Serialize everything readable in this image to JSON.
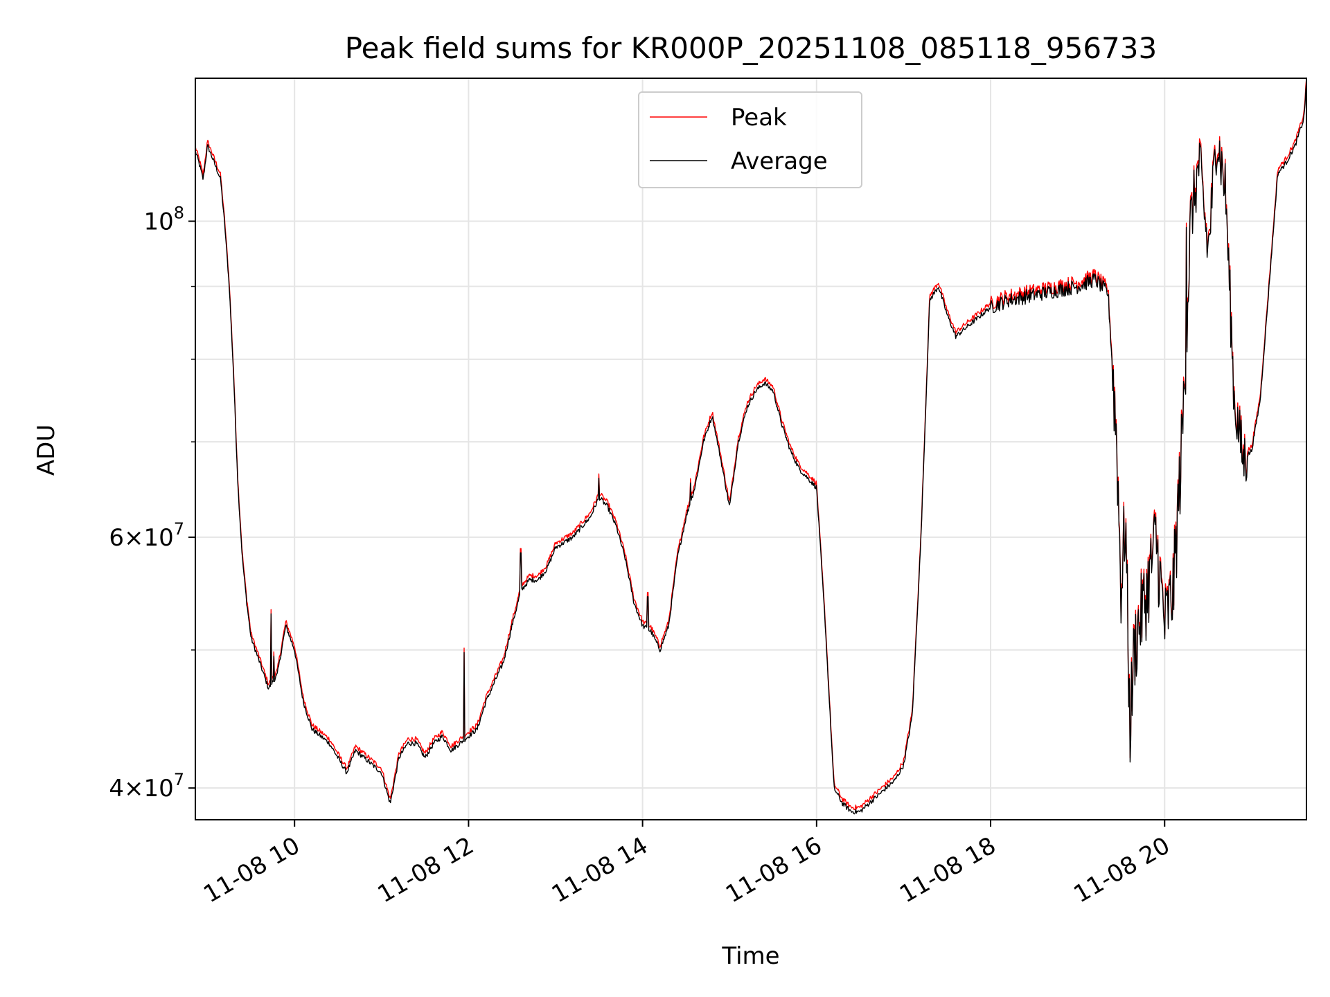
{
  "chart_data": {
    "type": "line",
    "title": "Peak field sums for KR000P_20251108_085118_956733",
    "xlabel": "Time",
    "ylabel": "ADU",
    "y_scale": "log",
    "xlim_hours": [
      8.86,
      21.63
    ],
    "ylim": [
      38000000,
      126000000
    ],
    "grid": true,
    "legend_position": "upper center",
    "x_ticks": [
      {
        "value": 10,
        "label": "11-08 10"
      },
      {
        "value": 12,
        "label": "11-08 12"
      },
      {
        "value": 14,
        "label": "11-08 14"
      },
      {
        "value": 16,
        "label": "11-08 16"
      },
      {
        "value": 18,
        "label": "11-08 18"
      },
      {
        "value": 20,
        "label": "11-08 20"
      }
    ],
    "y_major_ticks": [
      {
        "value": 40000000,
        "base": "4",
        "exp": "7"
      },
      {
        "value": 60000000,
        "base": "6",
        "exp": "7"
      },
      {
        "value": 100000000,
        "base": "10",
        "exp": "8"
      }
    ],
    "y_minor_ticks": [
      50000000,
      70000000,
      80000000,
      90000000
    ],
    "series": [
      {
        "name": "Peak",
        "color": "#ff0000",
        "offset_factor": 1.007
      },
      {
        "name": "Average",
        "color": "#000000",
        "offset_factor": 1.0
      }
    ],
    "x_hours": [
      8.86,
      8.9,
      8.95,
      9.0,
      9.05,
      9.1,
      9.15,
      9.2,
      9.25,
      9.3,
      9.35,
      9.4,
      9.45,
      9.5,
      9.6,
      9.7,
      9.75,
      9.8,
      9.9,
      10.0,
      10.1,
      10.2,
      10.3,
      10.4,
      10.5,
      10.6,
      10.7,
      10.8,
      10.9,
      11.0,
      11.1,
      11.2,
      11.3,
      11.4,
      11.5,
      11.6,
      11.7,
      11.8,
      11.9,
      12.0,
      12.1,
      12.2,
      12.3,
      12.4,
      12.5,
      12.6,
      12.7,
      12.8,
      12.9,
      13.0,
      13.1,
      13.2,
      13.3,
      13.4,
      13.5,
      13.6,
      13.7,
      13.8,
      13.9,
      14.0,
      14.1,
      14.2,
      14.3,
      14.4,
      14.5,
      14.6,
      14.7,
      14.8,
      14.9,
      15.0,
      15.1,
      15.2,
      15.3,
      15.4,
      15.5,
      15.6,
      15.7,
      15.8,
      15.9,
      16.0,
      16.1,
      16.2,
      16.3,
      16.4,
      16.5,
      16.6,
      16.7,
      16.8,
      16.9,
      17.0,
      17.1,
      17.2,
      17.3,
      17.4,
      17.5,
      17.6,
      17.7,
      17.8,
      17.9,
      18.0,
      18.2,
      18.4,
      18.6,
      18.8,
      19.0,
      19.2,
      19.35,
      19.45,
      19.5,
      19.55,
      19.6,
      19.65,
      19.7,
      19.8,
      19.9,
      20.0,
      20.1,
      20.2,
      20.3,
      20.4,
      20.5,
      20.6,
      20.7,
      20.8,
      20.9,
      21.0,
      21.1,
      21.2,
      21.3,
      21.4,
      21.5,
      21.6,
      21.63
    ],
    "average_values": [
      112000000,
      110000000,
      107000000,
      113000000,
      111000000,
      109000000,
      107000000,
      99000000,
      90000000,
      78000000,
      65000000,
      58000000,
      54000000,
      51000000,
      49000000,
      47000000,
      47500000,
      48000000,
      52000000,
      50000000,
      46000000,
      44000000,
      43500000,
      43000000,
      42000000,
      41000000,
      42500000,
      42000000,
      41500000,
      41000000,
      39000000,
      42000000,
      43000000,
      43000000,
      42000000,
      43000000,
      43500000,
      42500000,
      43000000,
      43500000,
      44000000,
      46000000,
      47500000,
      49000000,
      52000000,
      55000000,
      56000000,
      56000000,
      57000000,
      59000000,
      59500000,
      60000000,
      61000000,
      62000000,
      64000000,
      63000000,
      61000000,
      58000000,
      54000000,
      52000000,
      51500000,
      50000000,
      52000000,
      58000000,
      62000000,
      65000000,
      70000000,
      73000000,
      68000000,
      63000000,
      70000000,
      74000000,
      76000000,
      77000000,
      76000000,
      72000000,
      69000000,
      67000000,
      66000000,
      65000000,
      52000000,
      40000000,
      39000000,
      38500000,
      38500000,
      39000000,
      39500000,
      40000000,
      40500000,
      41500000,
      45000000,
      60000000,
      88000000,
      90000000,
      86000000,
      83000000,
      84000000,
      85000000,
      86000000,
      87000000,
      88000000,
      88500000,
      89000000,
      89500000,
      90000000,
      91000000,
      89000000,
      70000000,
      55000000,
      62000000,
      44000000,
      50000000,
      52000000,
      55000000,
      60000000,
      52000000,
      55000000,
      70000000,
      100000000,
      110000000,
      95000000,
      115000000,
      105000000,
      75000000,
      68000000,
      69000000,
      75000000,
      90000000,
      108000000,
      110000000,
      113000000,
      118000000,
      125000000
    ],
    "spikes": [
      {
        "hour": 9.73,
        "value": 53000000
      },
      {
        "hour": 9.76,
        "value": 49500000
      },
      {
        "hour": 11.95,
        "value": 49800000
      },
      {
        "hour": 12.6,
        "value": 58500000
      },
      {
        "hour": 13.5,
        "value": 66000000
      },
      {
        "hour": 14.06,
        "value": 54500000
      },
      {
        "hour": 14.55,
        "value": 65500000
      },
      {
        "hour": 20.25,
        "value": 99000000
      }
    ]
  }
}
